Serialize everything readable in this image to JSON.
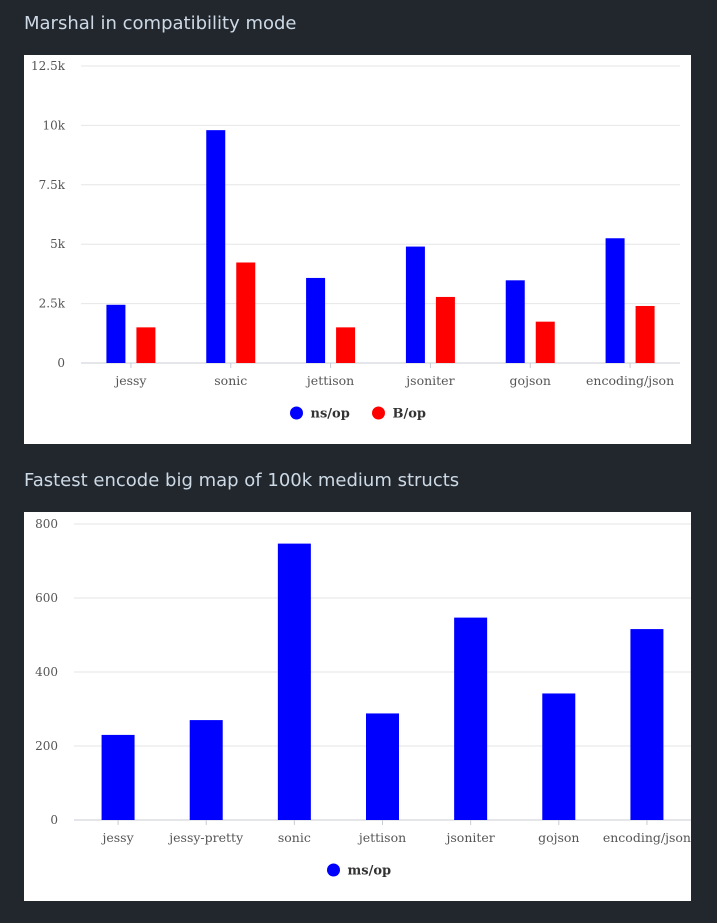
{
  "chart_data": [
    {
      "type": "bar",
      "title": "Marshal in compatibility mode",
      "categories": [
        "jessy",
        "sonic",
        "jettison",
        "jsoniter",
        "gojson",
        "encoding/json"
      ],
      "series": [
        {
          "name": "ns/op",
          "color": "#0000ff",
          "values": [
            2450,
            9800,
            3580,
            4900,
            3480,
            5250
          ]
        },
        {
          "name": "B/op",
          "color": "#ff0000",
          "values": [
            1500,
            4230,
            1500,
            2780,
            1740,
            2400
          ]
        }
      ],
      "ylim": [
        0,
        12500
      ],
      "yticks": [
        0,
        2500,
        5000,
        7500,
        10000,
        12500
      ],
      "ytick_labels": [
        "0",
        "2.5k",
        "5k",
        "7.5k",
        "10k",
        "12.5k"
      ],
      "xlabel": "",
      "ylabel": "",
      "grid": true,
      "legend_position": "bottom"
    },
    {
      "type": "bar",
      "title": "Fastest encode big map of 100k medium structs",
      "categories": [
        "jessy",
        "jessy-pretty",
        "sonic",
        "jettison",
        "jsoniter",
        "gojson",
        "encoding/json"
      ],
      "series": [
        {
          "name": "ms/op",
          "color": "#0000ff",
          "values": [
            230,
            270,
            747,
            288,
            547,
            342,
            516
          ]
        }
      ],
      "ylim": [
        0,
        800
      ],
      "yticks": [
        0,
        200,
        400,
        600,
        800
      ],
      "ytick_labels": [
        "0",
        "200",
        "400",
        "600",
        "800"
      ],
      "xlabel": "",
      "ylabel": "",
      "grid": true,
      "legend_position": "bottom"
    }
  ]
}
